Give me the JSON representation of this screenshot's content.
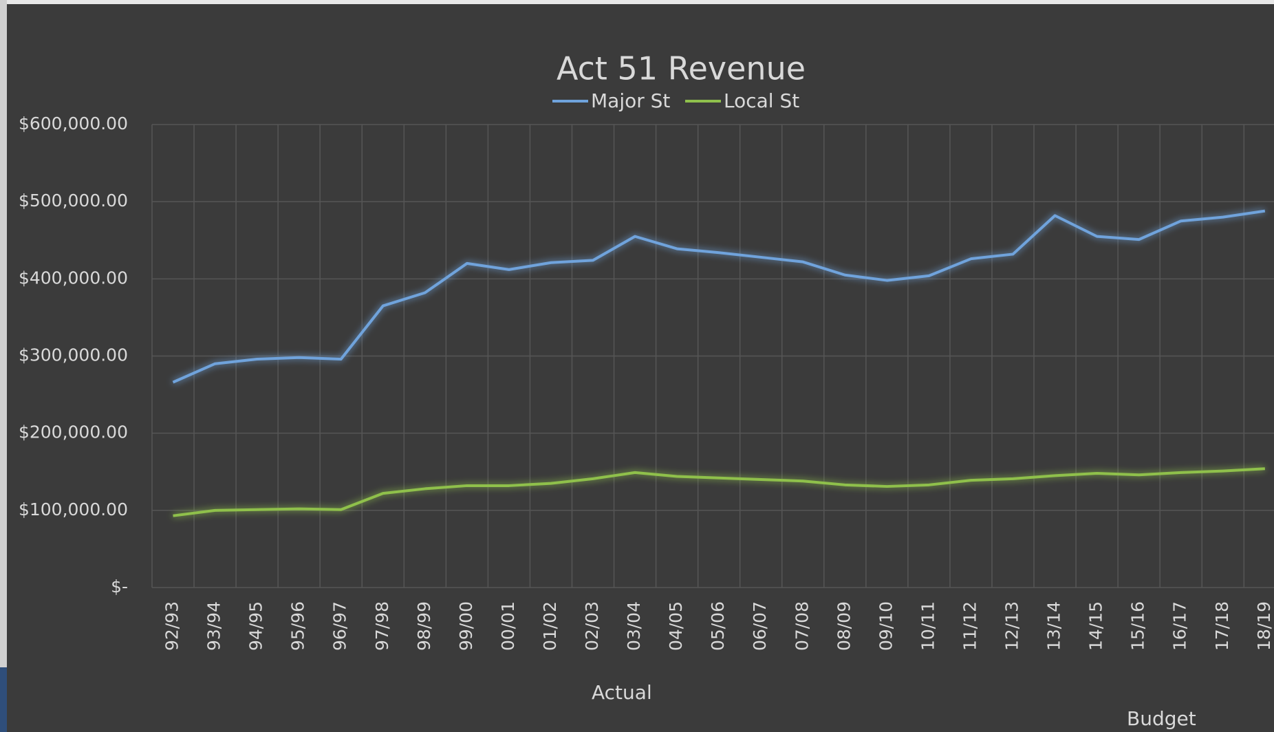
{
  "chart_data": {
    "type": "line",
    "title": "Act 51 Revenue",
    "categories": [
      "92/93",
      "93/94",
      "94/95",
      "95/96",
      "96/97",
      "97/98",
      "98/99",
      "99/00",
      "00/01",
      "01/02",
      "02/03",
      "03/04",
      "04/05",
      "05/06",
      "06/07",
      "07/08",
      "08/09",
      "09/10",
      "10/11",
      "11/12",
      "12/13",
      "13/14",
      "14/15",
      "15/16",
      "16/17",
      "17/18",
      "18/19"
    ],
    "series": [
      {
        "name": "Major St",
        "color": "#6fa3dc",
        "values": [
          266000,
          290000,
          296000,
          298000,
          296000,
          365000,
          382000,
          420000,
          412000,
          421000,
          424000,
          455000,
          439000,
          434000,
          428000,
          422000,
          405000,
          398000,
          404000,
          426000,
          432000,
          482000,
          455000,
          451000,
          475000,
          480000,
          488000
        ]
      },
      {
        "name": "Local St",
        "color": "#8fc04c",
        "values": [
          93000,
          100000,
          101000,
          102000,
          101000,
          122000,
          128000,
          132000,
          132000,
          135000,
          141000,
          149000,
          144000,
          142000,
          140000,
          138000,
          133000,
          131000,
          133000,
          139000,
          141000,
          145000,
          148000,
          146000,
          149000,
          151000,
          154000
        ]
      }
    ],
    "ylim": [
      0,
      600000
    ],
    "yticks": [
      {
        "value": 0,
        "label": "$-"
      },
      {
        "value": 100000,
        "label": "$100,000.00"
      },
      {
        "value": 200000,
        "label": "$200,000.00"
      },
      {
        "value": 300000,
        "label": "$300,000.00"
      },
      {
        "value": 400000,
        "label": "$400,000.00"
      },
      {
        "value": 500000,
        "label": "$500,000.00"
      },
      {
        "value": 600000,
        "label": "$600,000.00"
      }
    ],
    "grid": true,
    "legend": "top",
    "annotations": [
      "Actual",
      "Budget"
    ]
  }
}
